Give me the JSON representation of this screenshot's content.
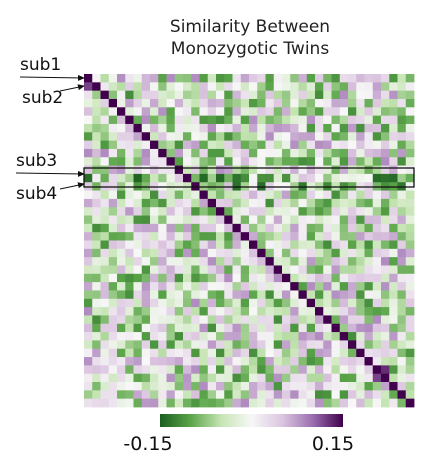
{
  "chart_data": {
    "type": "heatmap",
    "title": "Similarity Between Monozygotic Twins",
    "title_lines": [
      "Similarity Between",
      "Monozygotic Twins"
    ],
    "grid": false,
    "n": 40,
    "annotations": [
      "sub1",
      "sub2",
      "sub3",
      "sub4"
    ],
    "colorbar": {
      "min_label": "-0.15",
      "max_label": "0.15",
      "vmin": -0.15,
      "vmax": 0.15,
      "colors": [
        "#1b5e20",
        "#5aa449",
        "#c6e5b4",
        "#f7f7f7",
        "#dcc6e0",
        "#9b6fb0",
        "#40004b"
      ]
    },
    "highlighted_rows": [
      12,
      13
    ],
    "diagonal_value": 0.15,
    "strong_cells": [
      {
        "row": 0,
        "col": 0,
        "value": 0.15
      },
      {
        "row": 1,
        "col": 0,
        "value": 0.12
      },
      {
        "row": 11,
        "col": 11,
        "value": 0.15
      },
      {
        "row": 12,
        "col": 12,
        "value": 0.15
      },
      {
        "row": 12,
        "col": 0,
        "value": -0.14
      },
      {
        "row": 13,
        "col": 13,
        "value": 0.15
      },
      {
        "row": 20,
        "col": 20,
        "value": 0.15
      },
      {
        "row": 35,
        "col": 35,
        "value": 0.15
      },
      {
        "row": 35,
        "col": 36,
        "value": 0.13
      },
      {
        "row": 36,
        "col": 35,
        "value": 0.12
      }
    ]
  }
}
